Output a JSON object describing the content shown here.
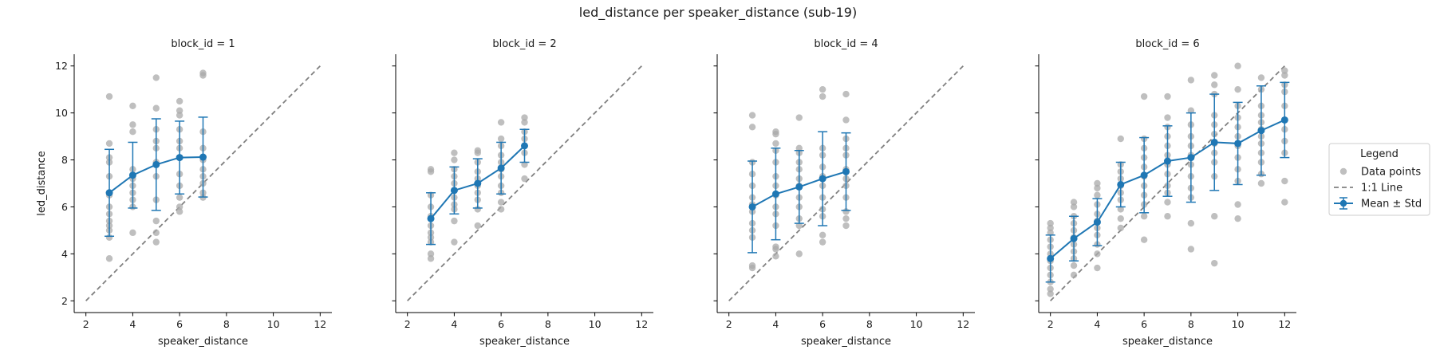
{
  "chart_data": {
    "type": "scatter",
    "title": "led_distance per speaker_distance (sub-19)",
    "xlabel": "speaker_distance",
    "ylabel": "led_distance",
    "xlim": [
      1.5,
      12.5
    ],
    "ylim": [
      1.5,
      12.5
    ],
    "xticks": [
      2,
      4,
      6,
      8,
      10,
      12
    ],
    "yticks": [
      2,
      4,
      6,
      8,
      10,
      12
    ],
    "grid": false,
    "legend": {
      "title": "Legend",
      "placement": "right",
      "entries": [
        {
          "label": "Data points",
          "kind": "point",
          "color": "#a9a9a9"
        },
        {
          "label": "1:1 Line",
          "kind": "dashed-line",
          "color": "#808080"
        },
        {
          "label": "Mean ± Std",
          "kind": "errorbar",
          "color": "#1f77b4"
        }
      ]
    },
    "colors": {
      "mean": "#1f77b4",
      "points": "#a9a9a9",
      "identity": "#808080"
    },
    "panels": [
      {
        "title": "block_id = 1",
        "mean_std": {
          "x": [
            3,
            4,
            5,
            6,
            7
          ],
          "mean": [
            6.6,
            7.35,
            7.8,
            8.1,
            8.12
          ],
          "std": [
            1.85,
            1.4,
            1.95,
            1.55,
            1.7
          ]
        },
        "points": [
          [
            3,
            10.7
          ],
          [
            3,
            8.7
          ],
          [
            3,
            8.1
          ],
          [
            3,
            7.9
          ],
          [
            3,
            7.3
          ],
          [
            3,
            6.5
          ],
          [
            3,
            6.0
          ],
          [
            3,
            5.7
          ],
          [
            3,
            5.4
          ],
          [
            3,
            5.2
          ],
          [
            3,
            5.0
          ],
          [
            3,
            4.7
          ],
          [
            3,
            3.8
          ],
          [
            4,
            10.3
          ],
          [
            4,
            9.5
          ],
          [
            4,
            9.2
          ],
          [
            4,
            7.6
          ],
          [
            4,
            7.2
          ],
          [
            4,
            6.9
          ],
          [
            4,
            6.6
          ],
          [
            4,
            6.3
          ],
          [
            4,
            6.0
          ],
          [
            4,
            4.9
          ],
          [
            5,
            11.5
          ],
          [
            5,
            10.2
          ],
          [
            5,
            9.3
          ],
          [
            5,
            8.8
          ],
          [
            5,
            8.5
          ],
          [
            5,
            7.9
          ],
          [
            5,
            7.3
          ],
          [
            5,
            6.3
          ],
          [
            5,
            5.4
          ],
          [
            5,
            4.9
          ],
          [
            5,
            4.5
          ],
          [
            6,
            10.5
          ],
          [
            6,
            10.1
          ],
          [
            6,
            9.9
          ],
          [
            6,
            9.3
          ],
          [
            6,
            8.8
          ],
          [
            6,
            8.5
          ],
          [
            6,
            8.1
          ],
          [
            6,
            7.4
          ],
          [
            6,
            6.9
          ],
          [
            6,
            6.4
          ],
          [
            6,
            6.0
          ],
          [
            6,
            5.8
          ],
          [
            7,
            11.7
          ],
          [
            7,
            11.6
          ],
          [
            7,
            9.2
          ],
          [
            7,
            8.5
          ],
          [
            7,
            8.0
          ],
          [
            7,
            7.6
          ],
          [
            7,
            7.3
          ],
          [
            7,
            7.0
          ],
          [
            7,
            6.6
          ],
          [
            7,
            6.4
          ]
        ]
      },
      {
        "title": "block_id = 2",
        "mean_std": {
          "x": [
            3,
            4,
            5,
            6,
            7
          ],
          "mean": [
            5.5,
            6.7,
            7.0,
            7.65,
            8.6
          ],
          "std": [
            1.1,
            1.0,
            1.05,
            1.1,
            0.7
          ]
        },
        "points": [
          [
            3,
            7.6
          ],
          [
            3,
            7.5
          ],
          [
            3,
            6.5
          ],
          [
            3,
            6.0
          ],
          [
            3,
            5.6
          ],
          [
            3,
            5.2
          ],
          [
            3,
            4.9
          ],
          [
            3,
            4.7
          ],
          [
            3,
            4.5
          ],
          [
            3,
            4.0
          ],
          [
            3,
            3.8
          ],
          [
            4,
            8.3
          ],
          [
            4,
            8.0
          ],
          [
            4,
            7.6
          ],
          [
            4,
            7.3
          ],
          [
            4,
            7.0
          ],
          [
            4,
            6.7
          ],
          [
            4,
            6.4
          ],
          [
            4,
            6.1
          ],
          [
            4,
            5.9
          ],
          [
            4,
            5.4
          ],
          [
            4,
            4.5
          ],
          [
            5,
            8.4
          ],
          [
            5,
            8.3
          ],
          [
            5,
            7.9
          ],
          [
            5,
            7.5
          ],
          [
            5,
            7.2
          ],
          [
            5,
            6.9
          ],
          [
            5,
            6.6
          ],
          [
            5,
            6.3
          ],
          [
            5,
            5.9
          ],
          [
            5,
            5.2
          ],
          [
            6,
            9.6
          ],
          [
            6,
            8.9
          ],
          [
            6,
            8.6
          ],
          [
            6,
            8.2
          ],
          [
            6,
            7.9
          ],
          [
            6,
            7.6
          ],
          [
            6,
            7.3
          ],
          [
            6,
            6.9
          ],
          [
            6,
            6.6
          ],
          [
            6,
            6.2
          ],
          [
            6,
            5.9
          ],
          [
            7,
            9.8
          ],
          [
            7,
            9.6
          ],
          [
            7,
            9.2
          ],
          [
            7,
            8.9
          ],
          [
            7,
            8.6
          ],
          [
            7,
            8.3
          ],
          [
            7,
            7.8
          ],
          [
            7,
            7.2
          ]
        ]
      },
      {
        "title": "block_id = 4",
        "mean_std": {
          "x": [
            3,
            4,
            5,
            6,
            7
          ],
          "mean": [
            6.0,
            6.55,
            6.85,
            7.2,
            7.5
          ],
          "std": [
            1.95,
            1.95,
            1.55,
            2.0,
            1.65
          ]
        },
        "points": [
          [
            3,
            9.9
          ],
          [
            3,
            9.4
          ],
          [
            3,
            7.9
          ],
          [
            3,
            7.4
          ],
          [
            3,
            6.9
          ],
          [
            3,
            6.4
          ],
          [
            3,
            6.1
          ],
          [
            3,
            5.8
          ],
          [
            3,
            5.3
          ],
          [
            3,
            5.0
          ],
          [
            3,
            4.7
          ],
          [
            3,
            3.5
          ],
          [
            3,
            3.4
          ],
          [
            4,
            9.2
          ],
          [
            4,
            9.1
          ],
          [
            4,
            8.7
          ],
          [
            4,
            8.4
          ],
          [
            4,
            7.9
          ],
          [
            4,
            7.3
          ],
          [
            4,
            6.9
          ],
          [
            4,
            6.5
          ],
          [
            4,
            6.0
          ],
          [
            4,
            5.7
          ],
          [
            4,
            5.2
          ],
          [
            4,
            4.3
          ],
          [
            4,
            4.2
          ],
          [
            4,
            3.9
          ],
          [
            5,
            9.8
          ],
          [
            5,
            8.5
          ],
          [
            5,
            8.3
          ],
          [
            5,
            7.9
          ],
          [
            5,
            7.6
          ],
          [
            5,
            7.2
          ],
          [
            5,
            6.9
          ],
          [
            5,
            6.4
          ],
          [
            5,
            6.0
          ],
          [
            5,
            5.5
          ],
          [
            5,
            5.2
          ],
          [
            5,
            4.0
          ],
          [
            6,
            11.0
          ],
          [
            6,
            10.7
          ],
          [
            6,
            8.5
          ],
          [
            6,
            8.2
          ],
          [
            6,
            7.7
          ],
          [
            6,
            7.3
          ],
          [
            6,
            6.9
          ],
          [
            6,
            6.4
          ],
          [
            6,
            5.9
          ],
          [
            6,
            5.6
          ],
          [
            6,
            4.8
          ],
          [
            6,
            4.5
          ],
          [
            7,
            10.8
          ],
          [
            7,
            9.7
          ],
          [
            7,
            8.9
          ],
          [
            7,
            8.5
          ],
          [
            7,
            8.2
          ],
          [
            7,
            7.6
          ],
          [
            7,
            7.2
          ],
          [
            7,
            6.9
          ],
          [
            7,
            6.4
          ],
          [
            7,
            5.8
          ],
          [
            7,
            5.5
          ],
          [
            7,
            5.2
          ]
        ]
      },
      {
        "title": "block_id = 6",
        "mean_std": {
          "x": [
            2,
            3,
            4,
            5,
            6,
            7,
            8,
            9,
            10,
            11,
            12
          ],
          "mean": [
            3.8,
            4.65,
            5.35,
            6.95,
            7.35,
            7.95,
            8.1,
            8.75,
            8.7,
            9.25,
            9.7
          ],
          "std": [
            1.0,
            0.95,
            1.0,
            0.95,
            1.6,
            1.5,
            1.9,
            2.05,
            1.75,
            1.9,
            1.6
          ]
        },
        "points": [
          [
            2,
            5.3
          ],
          [
            2,
            5.1
          ],
          [
            2,
            4.9
          ],
          [
            2,
            4.6
          ],
          [
            2,
            4.3
          ],
          [
            2,
            4.0
          ],
          [
            2,
            3.7
          ],
          [
            2,
            3.4
          ],
          [
            2,
            3.1
          ],
          [
            2,
            2.8
          ],
          [
            2,
            2.5
          ],
          [
            2,
            2.3
          ],
          [
            3,
            6.2
          ],
          [
            3,
            6.0
          ],
          [
            3,
            5.6
          ],
          [
            3,
            5.3
          ],
          [
            3,
            5.0
          ],
          [
            3,
            4.7
          ],
          [
            3,
            4.4
          ],
          [
            3,
            4.1
          ],
          [
            3,
            3.8
          ],
          [
            3,
            3.5
          ],
          [
            3,
            3.1
          ],
          [
            4,
            7.0
          ],
          [
            4,
            6.8
          ],
          [
            4,
            6.5
          ],
          [
            4,
            6.1
          ],
          [
            4,
            5.7
          ],
          [
            4,
            5.4
          ],
          [
            4,
            5.1
          ],
          [
            4,
            4.8
          ],
          [
            4,
            4.4
          ],
          [
            4,
            4.0
          ],
          [
            4,
            3.4
          ],
          [
            5,
            8.9
          ],
          [
            5,
            7.8
          ],
          [
            5,
            7.5
          ],
          [
            5,
            7.2
          ],
          [
            5,
            6.9
          ],
          [
            5,
            6.6
          ],
          [
            5,
            6.3
          ],
          [
            5,
            5.9
          ],
          [
            5,
            5.5
          ],
          [
            5,
            5.1
          ],
          [
            6,
            10.7
          ],
          [
            6,
            8.9
          ],
          [
            6,
            8.5
          ],
          [
            6,
            8.1
          ],
          [
            6,
            7.7
          ],
          [
            6,
            7.3
          ],
          [
            6,
            6.9
          ],
          [
            6,
            6.5
          ],
          [
            6,
            6.1
          ],
          [
            6,
            5.6
          ],
          [
            6,
            4.6
          ],
          [
            7,
            10.7
          ],
          [
            7,
            9.8
          ],
          [
            7,
            9.4
          ],
          [
            7,
            9.0
          ],
          [
            7,
            8.6
          ],
          [
            7,
            8.2
          ],
          [
            7,
            7.8
          ],
          [
            7,
            7.4
          ],
          [
            7,
            6.9
          ],
          [
            7,
            6.6
          ],
          [
            7,
            6.2
          ],
          [
            7,
            5.6
          ],
          [
            8,
            11.4
          ],
          [
            8,
            10.1
          ],
          [
            8,
            9.5
          ],
          [
            8,
            9.0
          ],
          [
            8,
            8.6
          ],
          [
            8,
            8.2
          ],
          [
            8,
            7.8
          ],
          [
            8,
            7.3
          ],
          [
            8,
            6.8
          ],
          [
            8,
            6.4
          ],
          [
            8,
            5.3
          ],
          [
            8,
            4.2
          ],
          [
            9,
            11.6
          ],
          [
            9,
            11.2
          ],
          [
            9,
            10.8
          ],
          [
            9,
            9.9
          ],
          [
            9,
            9.5
          ],
          [
            9,
            9.1
          ],
          [
            9,
            8.7
          ],
          [
            9,
            8.3
          ],
          [
            9,
            7.9
          ],
          [
            9,
            7.3
          ],
          [
            9,
            5.6
          ],
          [
            9,
            3.6
          ],
          [
            10,
            12.0
          ],
          [
            10,
            11.0
          ],
          [
            10,
            10.3
          ],
          [
            10,
            9.8
          ],
          [
            10,
            9.4
          ],
          [
            10,
            9.0
          ],
          [
            10,
            8.6
          ],
          [
            10,
            8.1
          ],
          [
            10,
            7.6
          ],
          [
            10,
            7.1
          ],
          [
            10,
            6.1
          ],
          [
            10,
            5.5
          ],
          [
            11,
            11.5
          ],
          [
            11,
            11.0
          ],
          [
            11,
            10.3
          ],
          [
            11,
            9.9
          ],
          [
            11,
            9.6
          ],
          [
            11,
            9.3
          ],
          [
            11,
            9.0
          ],
          [
            11,
            8.7
          ],
          [
            11,
            8.3
          ],
          [
            11,
            7.9
          ],
          [
            11,
            7.4
          ],
          [
            11,
            7.0
          ],
          [
            12,
            11.8
          ],
          [
            12,
            11.6
          ],
          [
            12,
            11.2
          ],
          [
            12,
            10.9
          ],
          [
            12,
            10.3
          ],
          [
            12,
            9.7
          ],
          [
            12,
            9.3
          ],
          [
            12,
            8.8
          ],
          [
            12,
            8.3
          ],
          [
            12,
            7.1
          ],
          [
            12,
            6.2
          ]
        ]
      }
    ]
  }
}
